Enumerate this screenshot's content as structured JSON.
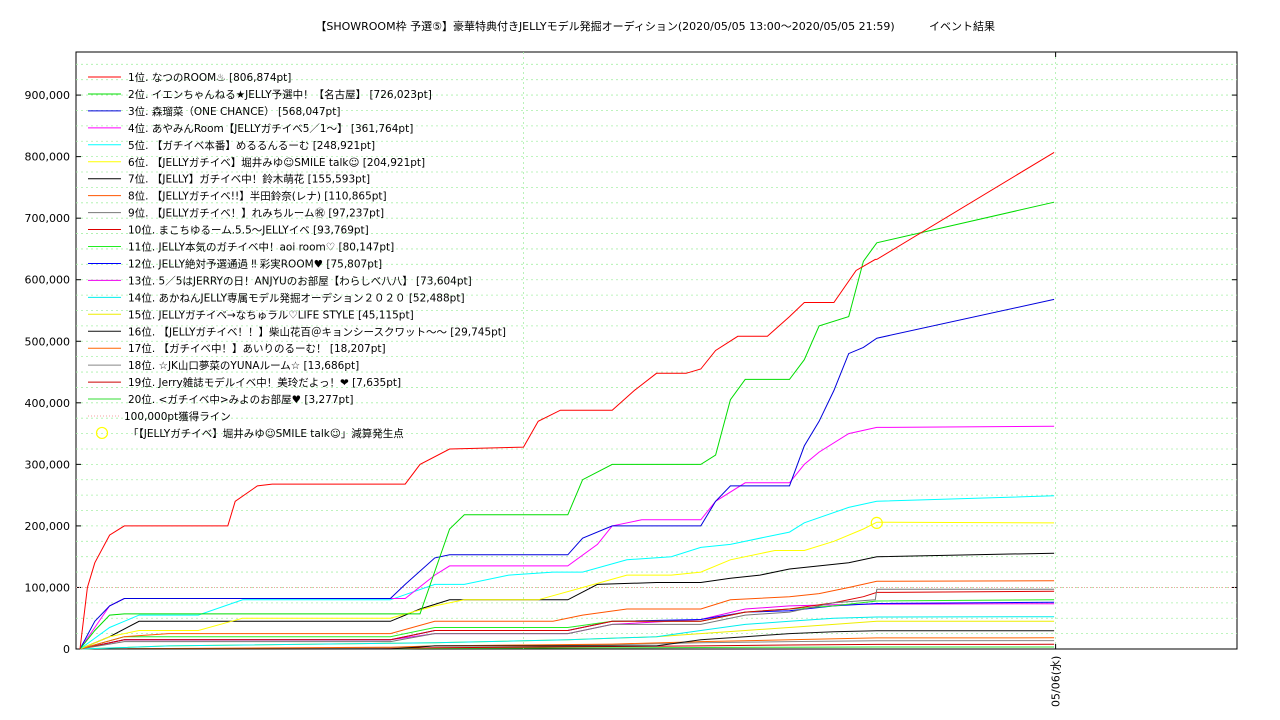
{
  "chart_data": {
    "type": "line",
    "title": "【SHOWROOM枠 予選⑤】豪華特典付きJELLYモデル発掘オーディション(2020/05/05 13:00〜2020/05/05 21:59)",
    "subtitle": "イベント結果",
    "xlim": [
      "2020/05/05 13:00",
      "2020/05/06 02:00"
    ],
    "ylim": [
      0,
      970000
    ],
    "yticks": [
      "0",
      "100,000",
      "200,000",
      "300,000",
      "400,000",
      "500,000",
      "600,000",
      "700,000",
      "800,000",
      "900,000"
    ],
    "ytick_values": [
      0,
      100000,
      200000,
      300000,
      400000,
      500000,
      600000,
      700000,
      800000,
      900000
    ],
    "xtick_label": "05/06(水)",
    "xtick_time": "2020/05/06 00:00",
    "grid": true,
    "legend_position": "top-left",
    "threshold": {
      "label": "100,000pt獲得ライン",
      "value": 100000,
      "color": "#f4a0a0"
    },
    "marker": {
      "label": "「【JELLYガチイベ】堀井みゆ☺SMILE talk☺」減算発生点",
      "time": "2020/05/05 21:59",
      "value": 204921,
      "color": "#ffff00"
    },
    "series": [
      {
        "name": "1位. なつのROOM♨ [806,874pt]",
        "color": "#ff0000",
        "times": [
          "13:00",
          "13:05",
          "13:10",
          "13:20",
          "13:30",
          "13:40",
          "14:40",
          "14:45",
          "15:00",
          "15:10",
          "16:40",
          "16:50",
          "17:10",
          "18:00",
          "18:10",
          "18:25",
          "19:00",
          "19:15",
          "19:30",
          "19:50",
          "20:00",
          "20:10",
          "20:25",
          "20:45",
          "21:00",
          "21:10",
          "21:30",
          "21:45",
          "21:58",
          "21:59",
          "23:59"
        ],
        "values": [
          0,
          100000,
          140000,
          185000,
          200000,
          200000,
          200000,
          240000,
          265000,
          268000,
          268000,
          300000,
          325000,
          328000,
          370000,
          388000,
          388000,
          420000,
          448000,
          448000,
          455000,
          485000,
          508000,
          508000,
          540000,
          563000,
          563000,
          615000,
          633000,
          633000,
          806874
        ]
      },
      {
        "name": "2位. イエンちゃんねる★JELLY予選中！【名古屋】 [726,023pt]",
        "color": "#00dd00",
        "times": [
          "13:00",
          "13:10",
          "13:20",
          "13:30",
          "16:50",
          "17:10",
          "17:20",
          "18:30",
          "18:40",
          "19:00",
          "20:00",
          "20:10",
          "20:20",
          "20:30",
          "20:45",
          "21:00",
          "21:10",
          "21:20",
          "21:40",
          "21:50",
          "21:59",
          "23:59"
        ],
        "values": [
          0,
          30000,
          55000,
          57000,
          57000,
          195000,
          218000,
          218000,
          275000,
          300000,
          300000,
          315000,
          405000,
          438000,
          438000,
          438000,
          470000,
          525000,
          540000,
          630000,
          660000,
          726023
        ]
      },
      {
        "name": "3位. 森瑠菜（ONE CHANCE） [568,047pt]",
        "color": "#0000dd",
        "times": [
          "13:00",
          "13:10",
          "13:20",
          "13:30",
          "16:30",
          "16:40",
          "17:00",
          "17:10",
          "18:30",
          "18:40",
          "19:00",
          "19:30",
          "20:00",
          "20:10",
          "20:20",
          "21:00",
          "21:10",
          "21:20",
          "21:30",
          "21:40",
          "21:50",
          "21:59",
          "23:59"
        ],
        "values": [
          0,
          45000,
          70000,
          82000,
          82000,
          105000,
          148000,
          153000,
          153000,
          180000,
          200000,
          200000,
          200000,
          240000,
          265000,
          265000,
          330000,
          370000,
          420000,
          480000,
          490000,
          505000,
          568047
        ]
      },
      {
        "name": "4位. あやみんRoom【JELLYガチイベ5／1〜】 [361,764pt]",
        "color": "#ff00ff",
        "times": [
          "13:00",
          "13:10",
          "13:20",
          "13:30",
          "16:40",
          "17:00",
          "17:10",
          "18:30",
          "18:50",
          "19:00",
          "19:20",
          "20:00",
          "20:10",
          "20:30",
          "21:00",
          "21:10",
          "21:20",
          "21:40",
          "21:59",
          "23:59"
        ],
        "values": [
          0,
          35000,
          70000,
          82000,
          82000,
          120000,
          135000,
          135000,
          170000,
          200000,
          210000,
          210000,
          240000,
          270000,
          270000,
          300000,
          320000,
          350000,
          360000,
          361764
        ]
      },
      {
        "name": "5位. 【ガチイベ本番】めるるんるーむ [248,921pt]",
        "color": "#00ffff",
        "times": [
          "13:00",
          "13:20",
          "13:40",
          "14:20",
          "14:50",
          "16:30",
          "17:00",
          "17:20",
          "17:50",
          "18:20",
          "18:40",
          "19:10",
          "19:40",
          "20:00",
          "20:20",
          "20:50",
          "21:00",
          "21:10",
          "21:40",
          "21:59",
          "23:59"
        ],
        "values": [
          0,
          35000,
          55000,
          55000,
          80000,
          80000,
          105000,
          105000,
          120000,
          125000,
          125000,
          145000,
          150000,
          165000,
          170000,
          185000,
          190000,
          205000,
          230000,
          240000,
          248921
        ]
      },
      {
        "name": "6位. 【JELLYガチイベ】堀井みゆ☺SMILE talk☺ [204,921pt]",
        "color": "#ffff00",
        "times": [
          "13:00",
          "13:20",
          "13:40",
          "14:20",
          "14:50",
          "16:30",
          "17:00",
          "17:20",
          "18:10",
          "18:40",
          "19:10",
          "19:40",
          "20:00",
          "20:20",
          "20:50",
          "21:10",
          "21:30",
          "21:50",
          "21:59",
          "23:59"
        ],
        "values": [
          0,
          20000,
          30000,
          30000,
          50000,
          50000,
          70000,
          80000,
          80000,
          100000,
          120000,
          120000,
          125000,
          145000,
          160000,
          160000,
          175000,
          195000,
          206000,
          204921
        ]
      },
      {
        "name": "7位. 【JELLY】ガチイベ中！鈴木萌花 [155,593pt]",
        "color": "#000000",
        "times": [
          "13:00",
          "13:20",
          "13:40",
          "14:40",
          "16:30",
          "16:50",
          "17:10",
          "18:30",
          "18:50",
          "19:30",
          "20:00",
          "20:20",
          "20:40",
          "21:00",
          "21:20",
          "21:40",
          "21:59",
          "23:59"
        ],
        "values": [
          0,
          20000,
          45000,
          45000,
          45000,
          65000,
          80000,
          80000,
          105000,
          108000,
          108000,
          115000,
          120000,
          130000,
          135000,
          140000,
          150000,
          155593
        ]
      },
      {
        "name": "8位. 【JELLYガチイベ!!】半田鈴奈(レナ) [110,865pt]",
        "color": "#ff5500",
        "times": [
          "13:00",
          "13:30",
          "14:00",
          "16:30",
          "17:00",
          "18:20",
          "18:40",
          "19:10",
          "20:00",
          "20:20",
          "21:00",
          "21:20",
          "21:40",
          "21:59",
          "23:59"
        ],
        "values": [
          0,
          20000,
          25000,
          25000,
          45000,
          45000,
          55000,
          65000,
          65000,
          80000,
          85000,
          90000,
          100000,
          110000,
          110865
        ]
      },
      {
        "name": "9位. 【JELLYガチイベ！】れみちルーム㊗ [97,237pt]",
        "color": "#777777",
        "times": [
          "13:00",
          "13:30",
          "16:30",
          "17:00",
          "18:30",
          "19:00",
          "20:00",
          "20:30",
          "21:00",
          "21:30",
          "21:58",
          "21:59",
          "23:59"
        ],
        "values": [
          0,
          12000,
          12000,
          25000,
          25000,
          40000,
          40000,
          55000,
          60000,
          75000,
          80000,
          97000,
          97237
        ]
      },
      {
        "name": "10位. まこちゆるーム.5.5〜JELLYイベ [93,769pt]",
        "color": "#dd0000",
        "times": [
          "13:00",
          "13:30",
          "16:30",
          "17:00",
          "18:30",
          "19:00",
          "20:00",
          "20:30",
          "21:00",
          "21:30",
          "21:50",
          "21:59",
          "23:59"
        ],
        "values": [
          0,
          15000,
          15000,
          30000,
          30000,
          45000,
          45000,
          60000,
          65000,
          75000,
          85000,
          92000,
          93769
        ]
      },
      {
        "name": "11位. JELLY本気のガチイベ中！aoi room♡ [80,147pt]",
        "color": "#22ee22",
        "times": [
          "13:00",
          "13:30",
          "16:30",
          "17:00",
          "18:30",
          "19:00",
          "20:00",
          "20:30",
          "21:00",
          "21:30",
          "21:59",
          "23:59"
        ],
        "values": [
          0,
          20000,
          20000,
          35000,
          35000,
          45000,
          45000,
          60000,
          65000,
          70000,
          78000,
          80147
        ]
      },
      {
        "name": "12位. JELLY絶対予選通過 ‼ 彩実ROOM♥ [75,807pt]",
        "color": "#0000ff",
        "times": [
          "13:00",
          "13:30",
          "16:30",
          "17:00",
          "18:30",
          "19:00",
          "20:00",
          "20:30",
          "21:00",
          "21:30",
          "21:59",
          "23:59"
        ],
        "values": [
          0,
          15000,
          15000,
          30000,
          30000,
          45000,
          48000,
          60000,
          62000,
          70000,
          74000,
          75807
        ]
      },
      {
        "name": "13位. 5／5はJERRYの日！ANJYUのお部屋【わらしべ八八】 [73,604pt]",
        "color": "#ee00ee",
        "times": [
          "13:00",
          "13:30",
          "16:30",
          "17:00",
          "18:30",
          "19:00",
          "20:00",
          "20:30",
          "21:00",
          "21:30",
          "21:59",
          "23:59"
        ],
        "values": [
          0,
          15000,
          15000,
          25000,
          25000,
          40000,
          48000,
          65000,
          70000,
          72000,
          73000,
          73604
        ]
      },
      {
        "name": "14位. あかねんJELLY専属モデル発掘オーデション２０２０ [52,488pt]",
        "color": "#00eeee",
        "times": [
          "13:00",
          "14:00",
          "17:00",
          "18:30",
          "19:30",
          "20:00",
          "20:30",
          "21:00",
          "21:30",
          "21:59",
          "23:59"
        ],
        "values": [
          0,
          5000,
          10000,
          15000,
          20000,
          30000,
          40000,
          45000,
          50000,
          52000,
          52488
        ]
      },
      {
        "name": "15位. JELLYガチイベ→なちゅラル♡LIFE STYLE [45,115pt]",
        "color": "#eeee00",
        "times": [
          "13:00",
          "14:00",
          "17:00",
          "18:30",
          "19:30",
          "20:30",
          "21:30",
          "21:59",
          "23:59"
        ],
        "values": [
          0,
          5000,
          10000,
          15000,
          20000,
          30000,
          40000,
          45000,
          45115
        ]
      },
      {
        "name": "16位. 【JELLYガチイベ！！】柴山花百＠キョンシースクワット〜〜 [29,745pt]",
        "color": "#111111",
        "times": [
          "13:00",
          "16:30",
          "17:00",
          "19:30",
          "20:00",
          "20:30",
          "21:00",
          "21:30",
          "21:59",
          "23:59"
        ],
        "values": [
          0,
          0,
          5000,
          5000,
          15000,
          20000,
          25000,
          28000,
          29500,
          29745
        ]
      },
      {
        "name": "17位. 【ガチイベ中！】あいりのるーむ！ [18,207pt]",
        "color": "#ff6600",
        "times": [
          "13:00",
          "16:30",
          "17:00",
          "19:00",
          "20:00",
          "21:00",
          "21:59",
          "23:59"
        ],
        "values": [
          0,
          3000,
          5000,
          8000,
          12000,
          15000,
          18000,
          18207
        ]
      },
      {
        "name": "18位. ☆JK山口夢菜のYUNAルーム☆ [13,686pt]",
        "color": "#888888",
        "times": [
          "13:00",
          "16:30",
          "17:00",
          "19:00",
          "20:00",
          "21:00",
          "21:59",
          "23:59"
        ],
        "values": [
          0,
          2000,
          5000,
          7000,
          10000,
          12000,
          13500,
          13686
        ]
      },
      {
        "name": "19位. Jerry雑誌モデルイベ中！美玲だよっ！❤ [7,635pt]",
        "color": "#cc0000",
        "times": [
          "13:00",
          "16:30",
          "17:00",
          "19:00",
          "20:00",
          "21:00",
          "21:59",
          "23:59"
        ],
        "values": [
          0,
          1000,
          2000,
          4000,
          5000,
          6500,
          7500,
          7635
        ]
      },
      {
        "name": "20位. <ガチイベ中>みよのお部屋♥ [3,277pt]",
        "color": "#33dd33",
        "times": [
          "13:00",
          "16:30",
          "17:00",
          "19:00",
          "20:00",
          "21:00",
          "21:59",
          "23:59"
        ],
        "values": [
          0,
          500,
          1000,
          2000,
          2500,
          3000,
          3200,
          3277
        ]
      }
    ]
  }
}
